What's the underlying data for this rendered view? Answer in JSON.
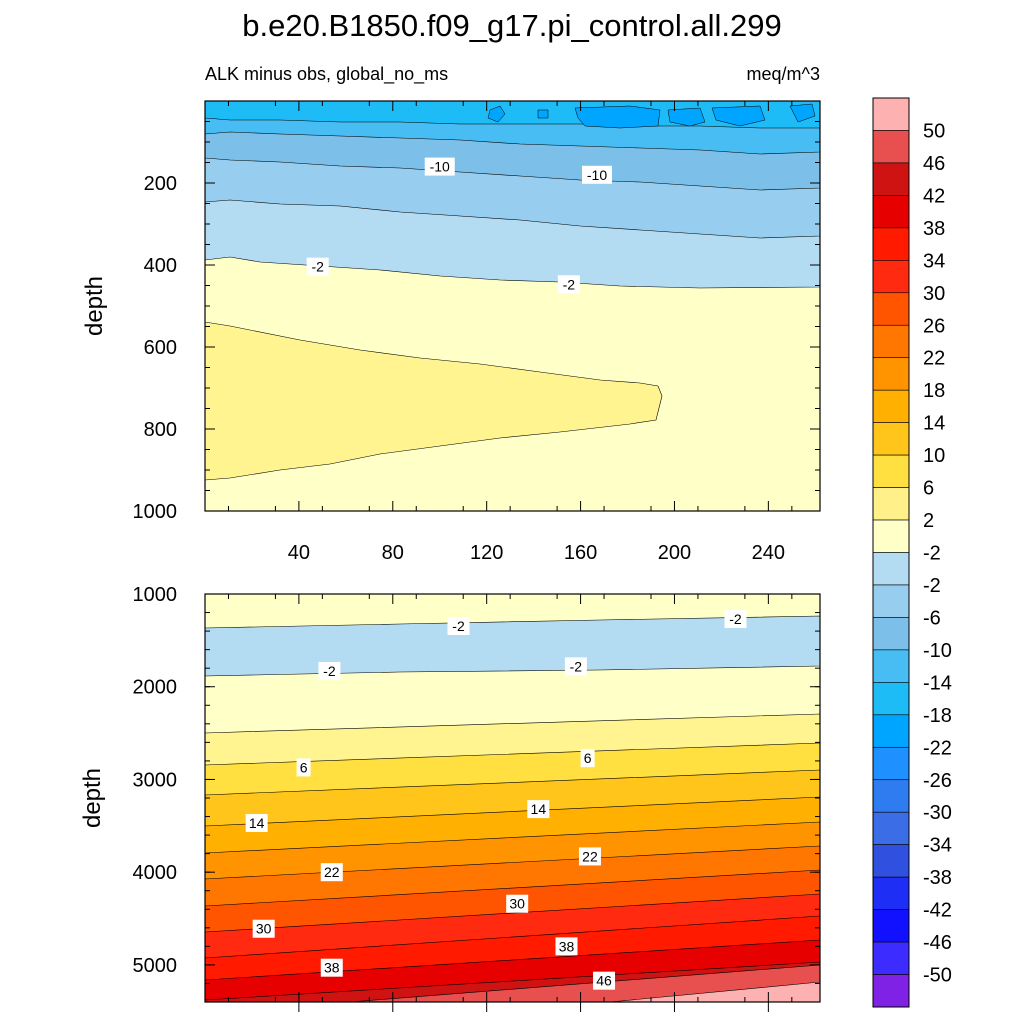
{
  "title": "b.e20.B1850.f09_g17.pi_control.all.299",
  "subtitle_left": "ALK minus obs, global_no_ms",
  "subtitle_right": "meq/m^3",
  "chart_data": [
    {
      "type": "contour",
      "panel": "upper",
      "ylabel": "depth",
      "xlim": [
        0,
        262
      ],
      "ylim": [
        1000,
        0
      ],
      "x_ticks": [
        40,
        80,
        120,
        160,
        200,
        240
      ],
      "y_ticks": [
        200,
        400,
        600,
        800,
        1000
      ],
      "contour_labels": [
        {
          "text": "-10",
          "x": 100,
          "y": 160
        },
        {
          "text": "-10",
          "x": 167,
          "y": 180
        },
        {
          "text": "-2",
          "x": 48,
          "y": 404
        },
        {
          "text": "-2",
          "x": 155,
          "y": 447
        }
      ]
    },
    {
      "type": "contour",
      "panel": "lower",
      "ylabel": "depth",
      "xlim": [
        0,
        262
      ],
      "ylim": [
        5400,
        1000
      ],
      "y_ticks": [
        1000,
        2000,
        3000,
        4000,
        5000
      ],
      "contour_labels": [
        {
          "text": "-2",
          "x": 108,
          "y": 1345
        },
        {
          "text": "-2",
          "x": 226,
          "y": 1270
        },
        {
          "text": "-2",
          "x": 53,
          "y": 1830
        },
        {
          "text": "-2",
          "x": 158,
          "y": 1780
        },
        {
          "text": "6",
          "x": 42,
          "y": 2870
        },
        {
          "text": "6",
          "x": 163,
          "y": 2770
        },
        {
          "text": "14",
          "x": 22,
          "y": 3470
        },
        {
          "text": "14",
          "x": 142,
          "y": 3320
        },
        {
          "text": "22",
          "x": 54,
          "y": 4000
        },
        {
          "text": "22",
          "x": 164,
          "y": 3830
        },
        {
          "text": "30",
          "x": 25,
          "y": 4610
        },
        {
          "text": "30",
          "x": 133,
          "y": 4340
        },
        {
          "text": "38",
          "x": 54,
          "y": 5030
        },
        {
          "text": "38",
          "x": 154,
          "y": 4800
        },
        {
          "text": "46",
          "x": 170,
          "y": 5170
        }
      ]
    }
  ],
  "colorbar": {
    "labels": [
      "50",
      "46",
      "42",
      "38",
      "34",
      "30",
      "26",
      "22",
      "18",
      "14",
      "10",
      "6",
      "2",
      "-2",
      "-2",
      "-6",
      "-10",
      "-14",
      "-18",
      "-22",
      "-26",
      "-30",
      "-34",
      "-38",
      "-42",
      "-46",
      "-50"
    ],
    "colors": [
      "#fdb2b1",
      "#e85050",
      "#cf1212",
      "#e60000",
      "#ff1a00",
      "#ff2a10",
      "#ff5500",
      "#ff7700",
      "#ff9400",
      "#ffb000",
      "#ffc51a",
      "#ffe040",
      "#fff08a",
      "#ffffc8",
      "#b3dcf2",
      "#97cdee",
      "#7cc0ea",
      "#48bdf3",
      "#1ebcf7",
      "#00a5ff",
      "#1e90ff",
      "#2f7bf0",
      "#3b6ee6",
      "#3050e0",
      "#1e2ef5",
      "#1111ff",
      "#3c2cff",
      "#8021e6"
    ]
  }
}
